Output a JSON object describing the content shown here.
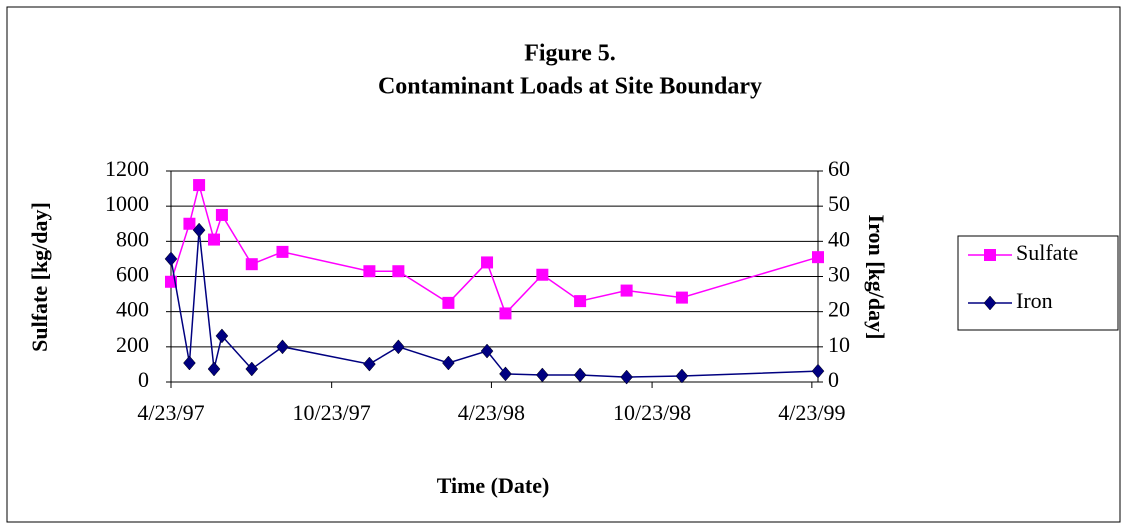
{
  "chart_data": {
    "type": "line",
    "title": "Figure 5.",
    "subtitle": "Contaminant Loads at Site Boundary",
    "x_label": "Time  (Date)",
    "y_label": "Sulfate  [kg/day]",
    "y2_label": "Iron  [kg/day]",
    "x": [
      "1997-04-23",
      "1997-05-14",
      "1997-05-25",
      "1997-06-11",
      "1997-06-20",
      "1997-07-24",
      "1997-08-28",
      "1997-12-05",
      "1998-01-07",
      "1998-03-05",
      "1998-04-18",
      "1998-05-09",
      "1998-06-20",
      "1998-08-02",
      "1998-09-24",
      "1998-11-26",
      "1999-04-30"
    ],
    "xlim": [
      "1997-04-23",
      "1999-04-30"
    ],
    "xticks": [
      {
        "value": "1997-04-23",
        "label": "4/23/97"
      },
      {
        "value": "1997-10-23",
        "label": "10/23/97"
      },
      {
        "value": "1998-04-23",
        "label": "4/23/98"
      },
      {
        "value": "1998-10-23",
        "label": "10/23/98"
      },
      {
        "value": "1999-04-23",
        "label": "4/23/99"
      }
    ],
    "ylim": [
      0,
      1200
    ],
    "yticks": [
      0,
      200,
      400,
      600,
      800,
      1000,
      1200
    ],
    "y2lim": [
      0,
      60
    ],
    "y2ticks": [
      0,
      10,
      20,
      30,
      40,
      50,
      60
    ],
    "grid": true,
    "legend": "right",
    "series": [
      {
        "name": "Sulfate",
        "color": "#ff00ff",
        "marker": "square",
        "values": [
          570,
          900,
          1120,
          810,
          950,
          670,
          740,
          630,
          630,
          450,
          680,
          390,
          610,
          460,
          520,
          480,
          710
        ]
      },
      {
        "name": "Iron",
        "color": "#000080",
        "marker": "diamond",
        "axis": "y2",
        "values": [
          35,
          5.4,
          43.2,
          3.7,
          13.1,
          3.7,
          10,
          5.1,
          10,
          5.4,
          8.8,
          2.3,
          2,
          2,
          1.4,
          1.7,
          3.1
        ]
      }
    ]
  }
}
